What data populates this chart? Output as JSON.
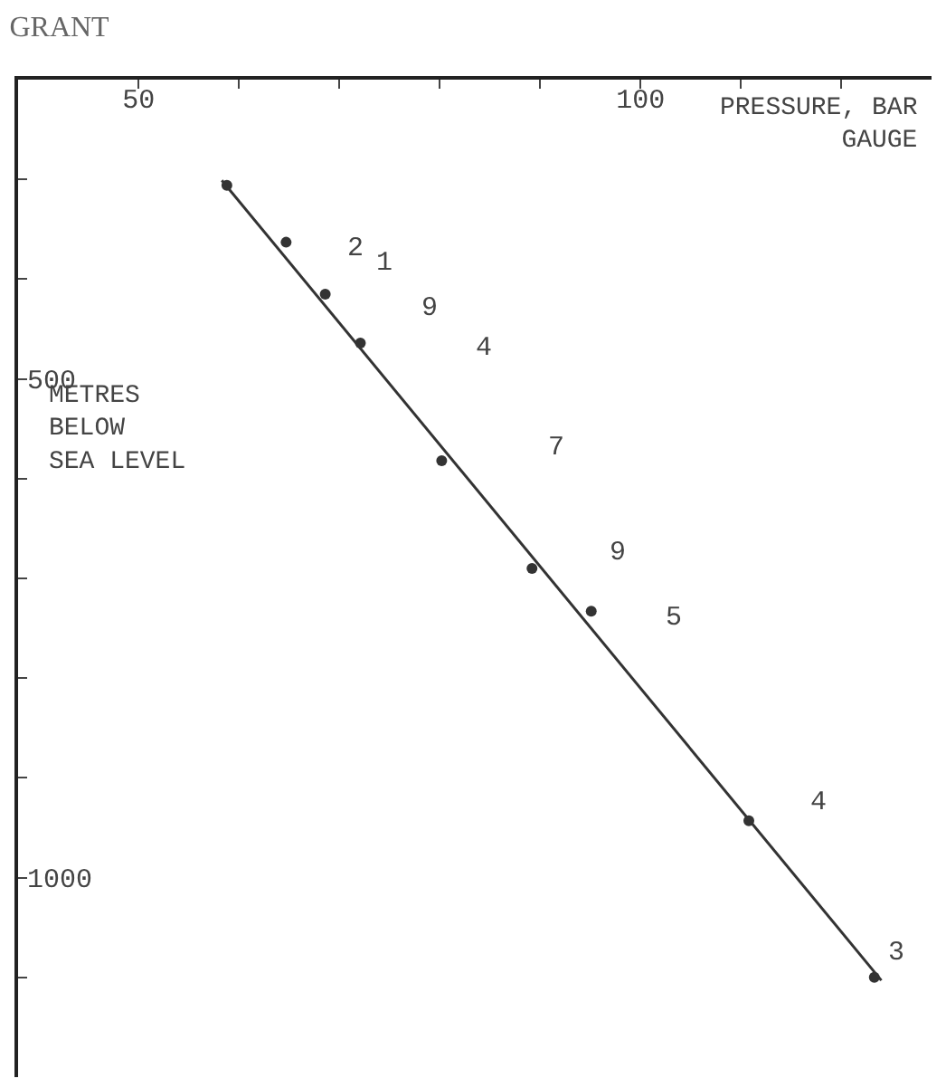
{
  "chart_data": {
    "type": "scatter",
    "title": "GRANT",
    "xlabel": "PRESSURE, BAR\nGAUGE",
    "ylabel": "METRES\nBELOW\nSEA LEVEL",
    "series": [
      {
        "color": "#333333",
        "x": [
          58.8,
          64.7,
          68.6,
          72.1,
          80.2,
          89.2,
          95.1,
          110.8,
          123.3
        ],
        "values": [
          306,
          363,
          415,
          464,
          582,
          690,
          733,
          943,
          1100
        ],
        "marker": "circle"
      },
      {
        "type": "line",
        "color": "#333333",
        "x": [
          58.3,
          124
        ],
        "values": [
          301,
          1103
        ],
        "line_style": "solid"
      }
    ],
    "annotations": [
      "2",
      "1",
      "9",
      "4",
      "7",
      "9",
      "5",
      "4",
      "3"
    ],
    "xlim": [
      38,
      129
    ],
    "ylim": [
      1200,
      200
    ],
    "xticks": [
      {
        "value": 50,
        "label": "50"
      },
      {
        "value": 60,
        "label": null
      },
      {
        "value": 70,
        "label": null
      },
      {
        "value": 80,
        "label": null
      },
      {
        "value": 90,
        "label": null
      },
      {
        "value": 100,
        "label": "100"
      },
      {
        "value": 110,
        "label": null
      },
      {
        "value": 120,
        "label": null
      }
    ],
    "yticks": [
      {
        "value": 300,
        "label": null
      },
      {
        "value": 400,
        "label": null
      },
      {
        "value": 500,
        "label": "500"
      },
      {
        "value": 600,
        "label": null
      },
      {
        "value": 700,
        "label": null
      },
      {
        "value": 800,
        "label": null
      },
      {
        "value": 900,
        "label": null
      },
      {
        "value": 1000,
        "label": "1000"
      },
      {
        "value": 1100,
        "label": null
      }
    ]
  }
}
